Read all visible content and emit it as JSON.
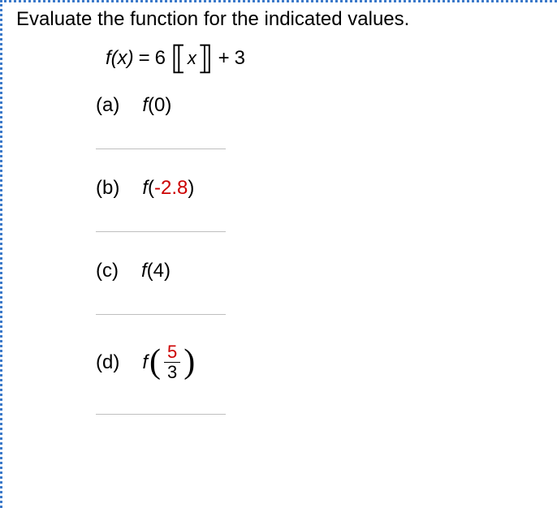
{
  "title": "Evaluate the function for the indicated values.",
  "formula": {
    "lhs": "f(x)",
    "eq": "=",
    "coef": "6",
    "varInner": "x",
    "plus": "+",
    "const": "3"
  },
  "parts": {
    "a": {
      "letter": "(a)",
      "func": "f",
      "arg": "(0)"
    },
    "b": {
      "letter": "(b)",
      "func": "f",
      "argOpen": "(",
      "argVal": "-2.8",
      "argClose": ")"
    },
    "c": {
      "letter": "(c)",
      "func": "f",
      "arg": "(4)"
    },
    "d": {
      "letter": "(d)",
      "func": "f",
      "num": "5",
      "den": "3"
    }
  },
  "colors": {
    "text": "#000000",
    "accentRed": "#cc0000",
    "borderDotted": "#3b79c9",
    "inputBorder": "#bfbfbf",
    "background": "#ffffff"
  }
}
